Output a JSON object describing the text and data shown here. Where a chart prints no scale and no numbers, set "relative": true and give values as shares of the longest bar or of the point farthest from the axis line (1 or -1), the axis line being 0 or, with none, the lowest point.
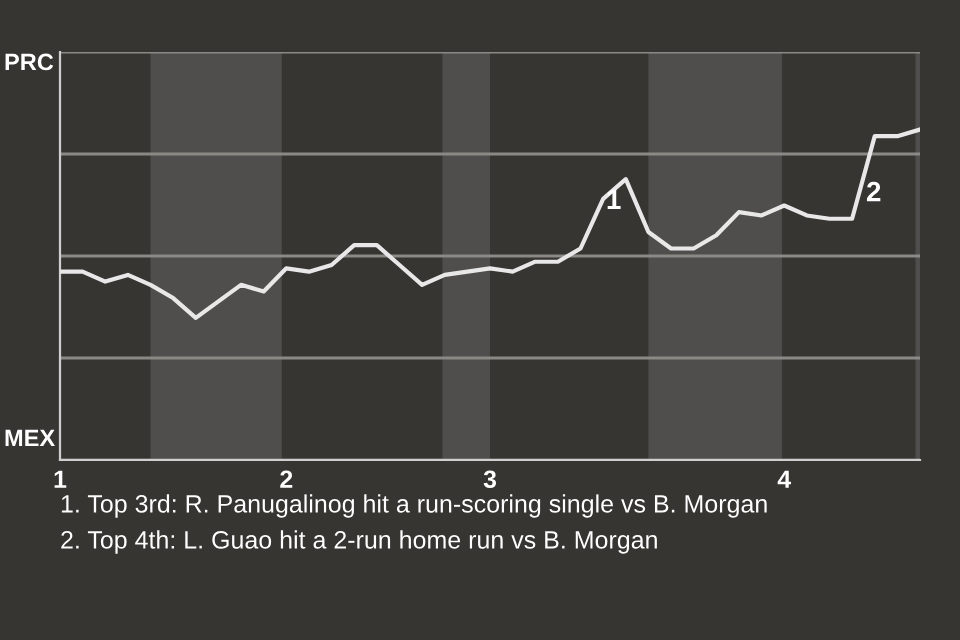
{
  "chart_data": {
    "type": "line",
    "relative": true,
    "categories": [
      "1",
      null,
      null,
      null,
      null,
      null,
      null,
      null,
      null,
      null,
      "2",
      null,
      null,
      null,
      null,
      null,
      null,
      null,
      null,
      "3",
      null,
      null,
      null,
      null,
      null,
      null,
      null,
      null,
      null,
      null,
      null,
      null,
      "4",
      null,
      null,
      null,
      null,
      null,
      null
    ],
    "series": [
      {
        "color": "#e8e8e8",
        "values": [
          0.57,
          0.57,
          0.54,
          0.56,
          0.53,
          0.49,
          0.43,
          0.48,
          0.53,
          0.51,
          0.58,
          0.57,
          0.59,
          0.65,
          0.65,
          0.59,
          0.53,
          0.56,
          0.57,
          0.58,
          0.57,
          0.6,
          0.6,
          0.64,
          0.79,
          0.85,
          0.69,
          0.64,
          0.64,
          0.68,
          0.75,
          0.74,
          0.77,
          0.74,
          0.73,
          0.73,
          0.98,
          0.98,
          1
        ]
      }
    ],
    "grid": "y",
    "annotations": [
      "PRC",
      "MEX",
      {
        "text": "1",
        "y": 0.79
      },
      "2",
      "1. Top 3rd: R. Panugalinog hit a run-scoring single vs B. Morgan",
      "2. Top 4th: L. Guao hit a 2-run home run vs B. Morgan"
    ]
  }
}
